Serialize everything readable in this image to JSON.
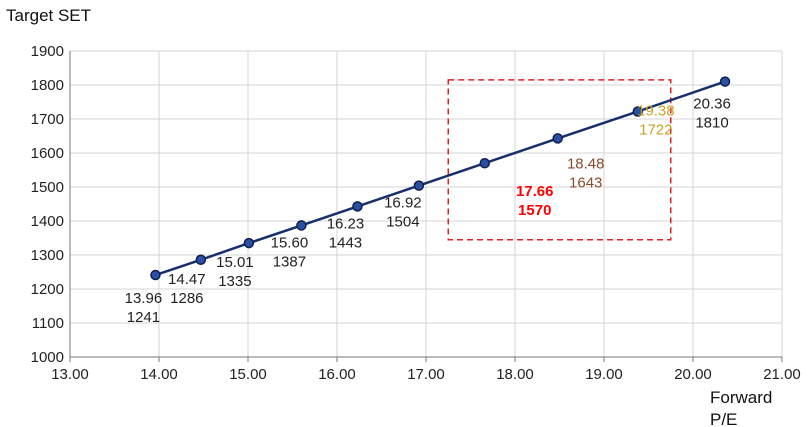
{
  "chart_data": {
    "type": "line",
    "title": "",
    "ylabel": "Target SET",
    "xlabel_lines": [
      "Forward",
      "P/E"
    ],
    "xlim": [
      13.0,
      21.0
    ],
    "ylim": [
      1000,
      1900
    ],
    "xticks": [
      13,
      14,
      15,
      16,
      17,
      18,
      19,
      20,
      21
    ],
    "xtick_labels": [
      "13.00",
      "14.00",
      "15.00",
      "16.00",
      "17.00",
      "18.00",
      "19.00",
      "20.00",
      "21.00"
    ],
    "yticks": [
      1000,
      1100,
      1200,
      1300,
      1400,
      1500,
      1600,
      1700,
      1800,
      1900
    ],
    "grid": "both",
    "series": [
      {
        "color": "#17306b",
        "points": [
          {
            "x": 13.96,
            "y": 1241,
            "x_label": "13.96",
            "y_label": "1241",
            "label_color": "#222222",
            "bold": false
          },
          {
            "x": 14.47,
            "y": 1286,
            "x_label": "14.47",
            "y_label": "1286",
            "label_color": "#222222",
            "bold": false
          },
          {
            "x": 15.01,
            "y": 1335,
            "x_label": "15.01",
            "y_label": "1335",
            "label_color": "#222222",
            "bold": false
          },
          {
            "x": 15.6,
            "y": 1387,
            "x_label": "15.60",
            "y_label": "1387",
            "label_color": "#222222",
            "bold": false
          },
          {
            "x": 16.23,
            "y": 1443,
            "x_label": "16.23",
            "y_label": "1443",
            "label_color": "#222222",
            "bold": false
          },
          {
            "x": 16.92,
            "y": 1504,
            "x_label": "16.92",
            "y_label": "1504",
            "label_color": "#222222",
            "bold": false
          },
          {
            "x": 17.66,
            "y": 1570,
            "x_label": "17.66",
            "y_label": "1570",
            "label_color": "#ff0000",
            "bold": true
          },
          {
            "x": 18.48,
            "y": 1643,
            "x_label": "18.48",
            "y_label": "1643",
            "label_color": "#8b4a2b",
            "bold": false
          },
          {
            "x": 19.38,
            "y": 1722,
            "x_label": "19.38",
            "y_label": "1722",
            "label_color": "#c9a227",
            "bold": false
          },
          {
            "x": 20.36,
            "y": 1810,
            "x_label": "20.36",
            "y_label": "1810",
            "label_color": "#222222",
            "bold": false
          }
        ]
      }
    ],
    "highlight_box": {
      "x_from": 17.25,
      "x_to": 19.75,
      "y_from": 1345,
      "y_to": 1815,
      "color": "#e02020",
      "style": "dashed"
    }
  }
}
